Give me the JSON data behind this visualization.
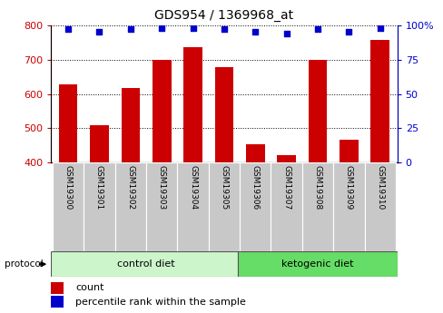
{
  "title": "GDS954 / 1369968_at",
  "samples": [
    "GSM19300",
    "GSM19301",
    "GSM19302",
    "GSM19303",
    "GSM19304",
    "GSM19305",
    "GSM19306",
    "GSM19307",
    "GSM19308",
    "GSM19309",
    "GSM19310"
  ],
  "counts": [
    628,
    510,
    618,
    698,
    737,
    678,
    453,
    422,
    698,
    468,
    758
  ],
  "percentile_ranks": [
    97,
    95,
    97,
    98,
    98,
    97,
    95,
    94,
    97,
    95,
    98
  ],
  "ymin": 400,
  "ymax": 800,
  "yticks_left": [
    400,
    500,
    600,
    700,
    800
  ],
  "yticks_right": [
    0,
    25,
    50,
    75,
    100
  ],
  "bar_color": "#cc0000",
  "dot_color": "#0000cc",
  "tick_area_color": "#c8c8c8",
  "control_diet_color": "#ccf5cc",
  "ketogenic_diet_color": "#66dd66",
  "control_samples": [
    "GSM19300",
    "GSM19301",
    "GSM19302",
    "GSM19303",
    "GSM19304",
    "GSM19305"
  ],
  "ketogenic_samples": [
    "GSM19306",
    "GSM19307",
    "GSM19308",
    "GSM19309",
    "GSM19310"
  ],
  "legend_count_label": "count",
  "legend_pct_label": "percentile rank within the sample",
  "protocol_label": "protocol"
}
